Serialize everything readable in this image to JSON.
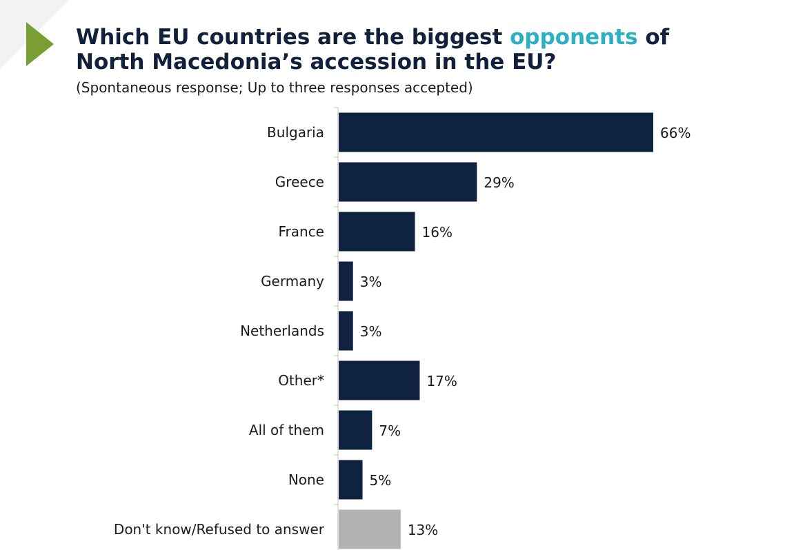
{
  "header": {
    "title_part1": "Which EU countries are the biggest ",
    "title_accent": "opponents",
    "title_part2": " of North Macedonia’s accession in the EU?",
    "subtitle": "(Spontaneous response; Up to three responses accepted)"
  },
  "colors": {
    "bar": "#0f2340",
    "bar_muted": "#b3b3b3",
    "accent": "#2bb0c4",
    "marker": "#7a9e34",
    "axis": "#bfbfbf"
  },
  "chart_data": {
    "type": "bar",
    "orientation": "horizontal",
    "title": "Which EU countries are the biggest opponents of North Macedonia’s accession in the EU?",
    "subtitle": "(Spontaneous response; Up to three responses accepted)",
    "categories": [
      "Bulgaria",
      "Greece",
      "France",
      "Germany",
      "Netherlands",
      "Other*",
      "All of them",
      "None",
      "Don't know/Refused to answer"
    ],
    "values": [
      66,
      29,
      16,
      3,
      3,
      17,
      7,
      5,
      13
    ],
    "value_labels": [
      "66%",
      "29%",
      "16%",
      "3%",
      "3%",
      "17%",
      "7%",
      "5%",
      "13%"
    ],
    "muted": [
      false,
      false,
      false,
      false,
      false,
      false,
      false,
      false,
      true
    ],
    "unit": "%",
    "xlim": [
      0,
      70
    ],
    "grid": false,
    "legend": "none"
  }
}
